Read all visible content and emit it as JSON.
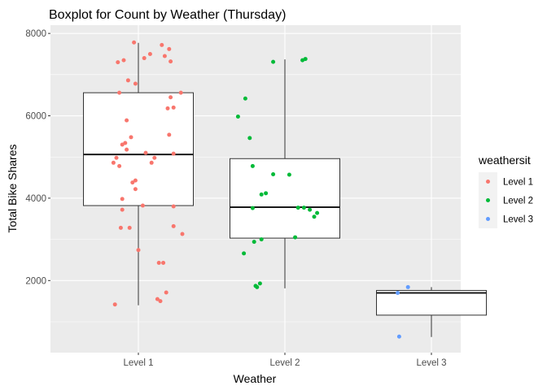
{
  "chart_data": {
    "type": "boxplot",
    "title": "Boxplot for Count by Weather (Thursday)",
    "xlabel": "Weather",
    "ylabel": "Total Bike Shares",
    "categories": [
      "Level 1",
      "Level 2",
      "Level 3"
    ],
    "ylim": [
      250,
      8200
    ],
    "yticks": [
      2000,
      4000,
      6000,
      8000
    ],
    "grid": true,
    "legend": {
      "title": "weathersit",
      "position": "right",
      "entries": [
        {
          "label": "Level 1",
          "color": "#F8766D"
        },
        {
          "label": "Level 2",
          "color": "#00BA38"
        },
        {
          "label": "Level 3",
          "color": "#619CFF"
        }
      ]
    },
    "boxes": [
      {
        "category": "Level 1",
        "whisker_low": 1400,
        "q1": 3820,
        "median": 5060,
        "q3": 6560,
        "whisker_high": 7770
      },
      {
        "category": "Level 2",
        "whisker_low": 1810,
        "q1": 3030,
        "median": 3780,
        "q3": 4960,
        "whisker_high": 7370
      },
      {
        "category": "Level 3",
        "whisker_low": 630,
        "q1": 1160,
        "median": 1700,
        "q3": 1760,
        "whisker_high": 1840
      }
    ],
    "points": [
      {
        "series": "Level 1",
        "color": "#F8766D",
        "data": [
          {
            "x": 0.84,
            "y": 1420
          },
          {
            "x": 0.94,
            "y": 3280
          },
          {
            "x": 1.13,
            "y": 1550
          },
          {
            "x": 1.19,
            "y": 1710
          },
          {
            "x": 1.15,
            "y": 1500
          },
          {
            "x": 1.0,
            "y": 2740
          },
          {
            "x": 1.14,
            "y": 2430
          },
          {
            "x": 1.17,
            "y": 2430
          },
          {
            "x": 0.88,
            "y": 3280
          },
          {
            "x": 1.3,
            "y": 3130
          },
          {
            "x": 1.24,
            "y": 3320
          },
          {
            "x": 0.89,
            "y": 3720
          },
          {
            "x": 1.03,
            "y": 3820
          },
          {
            "x": 1.24,
            "y": 3800
          },
          {
            "x": 0.89,
            "y": 3980
          },
          {
            "x": 0.98,
            "y": 4220
          },
          {
            "x": 0.98,
            "y": 4430
          },
          {
            "x": 0.96,
            "y": 4380
          },
          {
            "x": 0.87,
            "y": 4780
          },
          {
            "x": 0.83,
            "y": 4860
          },
          {
            "x": 0.85,
            "y": 4980
          },
          {
            "x": 0.92,
            "y": 5180
          },
          {
            "x": 0.91,
            "y": 5340
          },
          {
            "x": 0.89,
            "y": 5300
          },
          {
            "x": 0.95,
            "y": 5480
          },
          {
            "x": 1.05,
            "y": 5100
          },
          {
            "x": 1.11,
            "y": 4980
          },
          {
            "x": 1.09,
            "y": 4860
          },
          {
            "x": 1.24,
            "y": 5080
          },
          {
            "x": 1.21,
            "y": 5540
          },
          {
            "x": 0.92,
            "y": 5890
          },
          {
            "x": 1.2,
            "y": 6180
          },
          {
            "x": 1.24,
            "y": 6200
          },
          {
            "x": 1.22,
            "y": 6450
          },
          {
            "x": 1.29,
            "y": 6560
          },
          {
            "x": 0.87,
            "y": 6560
          },
          {
            "x": 0.93,
            "y": 6860
          },
          {
            "x": 0.98,
            "y": 6780
          },
          {
            "x": 0.86,
            "y": 7300
          },
          {
            "x": 0.9,
            "y": 7350
          },
          {
            "x": 1.08,
            "y": 7500
          },
          {
            "x": 1.18,
            "y": 7450
          },
          {
            "x": 1.21,
            "y": 7620
          },
          {
            "x": 1.16,
            "y": 7720
          },
          {
            "x": 1.22,
            "y": 7320
          },
          {
            "x": 0.97,
            "y": 7780
          },
          {
            "x": 1.04,
            "y": 7400
          }
        ]
      },
      {
        "series": "Level 2",
        "color": "#00BA38",
        "data": [
          {
            "x": 1.72,
            "y": 2660
          },
          {
            "x": 1.79,
            "y": 2940
          },
          {
            "x": 1.84,
            "y": 3000
          },
          {
            "x": 1.8,
            "y": 1870
          },
          {
            "x": 1.81,
            "y": 1840
          },
          {
            "x": 1.83,
            "y": 1930
          },
          {
            "x": 1.78,
            "y": 3760
          },
          {
            "x": 2.07,
            "y": 3050
          },
          {
            "x": 2.09,
            "y": 3770
          },
          {
            "x": 2.13,
            "y": 3770
          },
          {
            "x": 2.17,
            "y": 3720
          },
          {
            "x": 2.2,
            "y": 3550
          },
          {
            "x": 2.22,
            "y": 3640
          },
          {
            "x": 1.84,
            "y": 4090
          },
          {
            "x": 1.87,
            "y": 4120
          },
          {
            "x": 1.92,
            "y": 4580
          },
          {
            "x": 2.03,
            "y": 4570
          },
          {
            "x": 1.78,
            "y": 4780
          },
          {
            "x": 1.76,
            "y": 5460
          },
          {
            "x": 1.68,
            "y": 5980
          },
          {
            "x": 1.73,
            "y": 6420
          },
          {
            "x": 1.92,
            "y": 7310
          },
          {
            "x": 2.12,
            "y": 7350
          },
          {
            "x": 2.14,
            "y": 7380
          }
        ]
      },
      {
        "series": "Level 3",
        "color": "#619CFF",
        "data": [
          {
            "x": 2.77,
            "y": 1700
          },
          {
            "x": 2.84,
            "y": 1840
          },
          {
            "x": 2.78,
            "y": 640
          }
        ]
      }
    ]
  }
}
